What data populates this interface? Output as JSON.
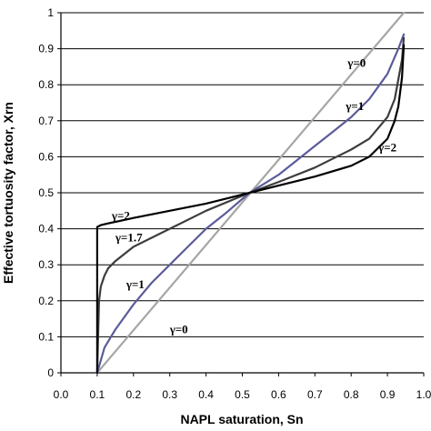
{
  "chart_data": {
    "type": "line",
    "xlabel": "NAPL saturation, Sn",
    "ylabel": "Effective tortuosity factor, Xrn",
    "xlim": [
      0,
      1
    ],
    "ylim": [
      0,
      1
    ],
    "x_ticks": [
      "0.0",
      "0.1",
      "0.2",
      "0.3",
      "0.4",
      "0.5",
      "0.6",
      "0.7",
      "0.8",
      "0.9",
      "1.0"
    ],
    "y_ticks": [
      "0",
      "0.1",
      "0.2",
      "0.3",
      "0.4",
      "0.5",
      "0.6",
      "0.7",
      "0.8",
      "0.9",
      "1"
    ],
    "grid": "horizontal",
    "series": [
      {
        "name": "γ=0",
        "color": "#a6a6a6",
        "x": [
          0.1,
          0.945
        ],
        "y": [
          0.0,
          1.0
        ]
      },
      {
        "name": "γ=1",
        "color": "#5b5b9b",
        "x": [
          0.1,
          0.12,
          0.15,
          0.2,
          0.25,
          0.3,
          0.35,
          0.4,
          0.45,
          0.52,
          0.6,
          0.65,
          0.7,
          0.75,
          0.8,
          0.85,
          0.9,
          0.93,
          0.945
        ],
        "y": [
          0.0,
          0.07,
          0.12,
          0.19,
          0.25,
          0.3,
          0.35,
          0.4,
          0.44,
          0.5,
          0.55,
          0.59,
          0.63,
          0.67,
          0.71,
          0.76,
          0.83,
          0.9,
          0.94
        ]
      },
      {
        "name": "γ=1.7",
        "color": "#3d3d3d",
        "x": [
          0.1,
          0.105,
          0.11,
          0.12,
          0.13,
          0.15,
          0.2,
          0.3,
          0.4,
          0.52,
          0.6,
          0.7,
          0.8,
          0.85,
          0.9,
          0.92,
          0.94,
          0.945
        ],
        "y": [
          0.0,
          0.2,
          0.24,
          0.27,
          0.29,
          0.31,
          0.35,
          0.4,
          0.45,
          0.5,
          0.53,
          0.57,
          0.62,
          0.65,
          0.71,
          0.76,
          0.87,
          0.93
        ]
      },
      {
        "name": "γ=2",
        "color": "#000000",
        "x": [
          0.1,
          0.1,
          0.11,
          0.13,
          0.2,
          0.3,
          0.4,
          0.52,
          0.6,
          0.7,
          0.8,
          0.85,
          0.9,
          0.92,
          0.93,
          0.94,
          0.945
        ],
        "y": [
          0.0,
          0.405,
          0.41,
          0.415,
          0.43,
          0.45,
          0.47,
          0.5,
          0.52,
          0.545,
          0.575,
          0.6,
          0.65,
          0.7,
          0.74,
          0.82,
          0.91
        ]
      }
    ],
    "annotations": [
      {
        "text": "γ=0",
        "x": 0.79,
        "y": 0.85
      },
      {
        "text": "γ=1",
        "x": 0.785,
        "y": 0.73
      },
      {
        "text": "γ=2",
        "x": 0.875,
        "y": 0.615
      },
      {
        "text": "γ=2",
        "x": 0.14,
        "y": 0.425
      },
      {
        "text": "γ=1.7",
        "x": 0.15,
        "y": 0.365
      },
      {
        "text": "γ=1",
        "x": 0.18,
        "y": 0.235
      },
      {
        "text": "γ=0",
        "x": 0.3,
        "y": 0.11
      }
    ]
  }
}
